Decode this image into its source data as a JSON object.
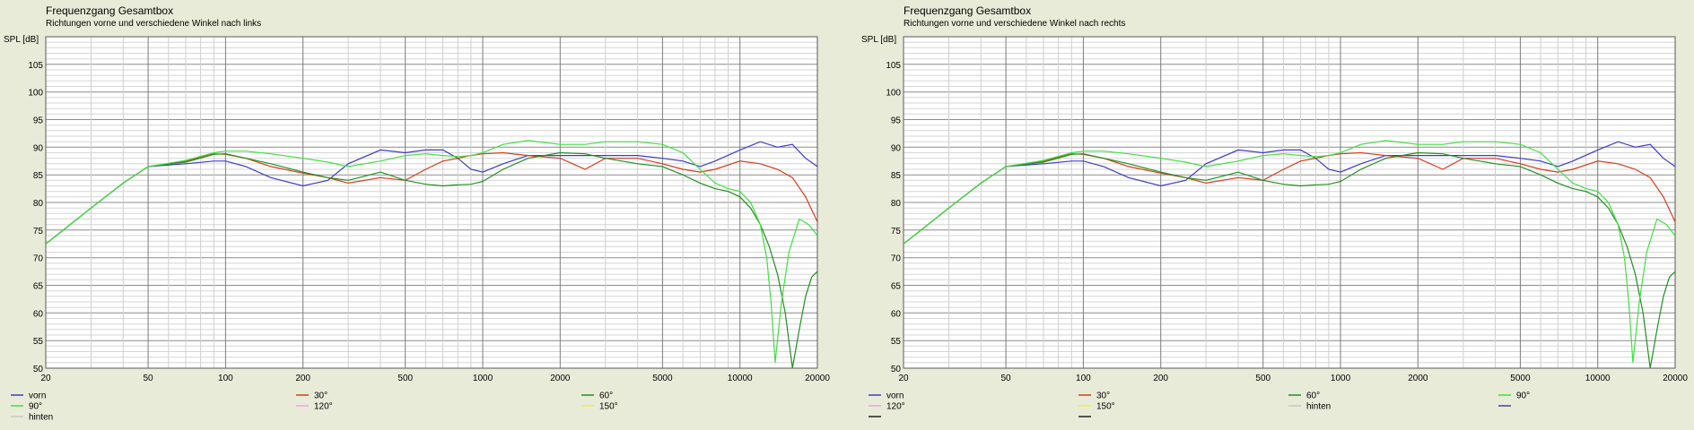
{
  "chart_data": [
    {
      "type": "line",
      "title": "Frequenzgang Gesamtbox",
      "subtitle": "Richtungen vorne und verschiedene Winkel nach links",
      "ylabel": "SPL [dB]",
      "xlabel": "",
      "x_scale": "log",
      "xlim": [
        20,
        20000
      ],
      "ylim": [
        50,
        110
      ],
      "grid": true,
      "x_ticks": [
        "20",
        "50",
        "100",
        "200",
        "500",
        "1000",
        "2000",
        "5000",
        "10000",
        "20000"
      ],
      "y_ticks": [
        "50",
        "55",
        "60",
        "65",
        "70",
        "75",
        "80",
        "85",
        "90",
        "95",
        "100",
        "105"
      ],
      "legend_rows": [
        [
          "vorn",
          "30°",
          "60°"
        ],
        [
          "90°",
          "120°",
          "150°"
        ],
        [
          "hinten"
        ]
      ],
      "series": [
        {
          "name": "vorn",
          "color": "#3c3cc8",
          "x": [
            20,
            30,
            40,
            50,
            70,
            90,
            100,
            120,
            150,
            200,
            250,
            300,
            400,
            500,
            600,
            700,
            800,
            900,
            1000,
            1200,
            1500,
            2000,
            3000,
            4000,
            5000,
            6000,
            7000,
            8000,
            10000,
            12000,
            14000,
            16000,
            18000,
            20000
          ],
          "y": [
            72.5,
            79,
            83.5,
            86.5,
            87,
            87.5,
            87.5,
            86.5,
            84.5,
            83,
            84,
            87,
            89.5,
            89,
            89.5,
            89.5,
            88,
            86,
            85.5,
            87,
            88.5,
            88.5,
            88.5,
            88.5,
            88,
            87.5,
            86.5,
            87.5,
            89.5,
            91,
            90,
            90.5,
            88,
            86.5
          ]
        },
        {
          "name": "30°",
          "color": "#d83a1c",
          "x": [
            20,
            30,
            40,
            50,
            70,
            90,
            100,
            120,
            150,
            200,
            250,
            300,
            400,
            500,
            600,
            700,
            800,
            900,
            1000,
            1200,
            1500,
            2000,
            2500,
            3000,
            4000,
            5000,
            6000,
            7000,
            8000,
            10000,
            12000,
            14000,
            16000,
            18000,
            20000
          ],
          "y": [
            72.5,
            79,
            83.5,
            86.5,
            87.5,
            88.8,
            88.7,
            88,
            86.5,
            85.3,
            84.5,
            83.5,
            84.5,
            84,
            86,
            87.5,
            88,
            88.5,
            88.8,
            89,
            88.5,
            88,
            86,
            88,
            88,
            87,
            86,
            85.5,
            86,
            87.5,
            87,
            86,
            84.5,
            81,
            76.5
          ]
        },
        {
          "name": "60°",
          "color": "#209020",
          "x": [
            20,
            30,
            40,
            50,
            70,
            90,
            100,
            120,
            150,
            200,
            250,
            300,
            350,
            400,
            500,
            600,
            700,
            800,
            900,
            1000,
            1200,
            1500,
            2000,
            2500,
            3000,
            4000,
            5000,
            6000,
            7000,
            8000,
            9000,
            10000,
            11000,
            12000,
            13000,
            14000,
            15000,
            16000,
            17000,
            18000,
            19000,
            20000
          ],
          "y": [
            72.5,
            79,
            83.5,
            86.5,
            87.3,
            88.7,
            88.8,
            88,
            87,
            85.5,
            84.5,
            84,
            84.8,
            85.5,
            84,
            83.3,
            83,
            83.2,
            83.3,
            83.8,
            86,
            88,
            89,
            88.8,
            88,
            87,
            86.5,
            85,
            83.5,
            82.5,
            82,
            81,
            79,
            76,
            72,
            67,
            60,
            50,
            57,
            63,
            66.5,
            67.5
          ]
        },
        {
          "name": "90°",
          "color": "#40e040",
          "x": [
            20,
            30,
            40,
            50,
            70,
            90,
            100,
            120,
            150,
            200,
            250,
            300,
            400,
            500,
            600,
            700,
            800,
            900,
            1000,
            1200,
            1500,
            2000,
            2500,
            3000,
            4000,
            5000,
            6000,
            7000,
            8000,
            9000,
            10000,
            11000,
            12000,
            12700,
            13200,
            13700,
            14500,
            15500,
            17000,
            18500,
            20000
          ],
          "y": [
            72.5,
            79,
            83.5,
            86.5,
            87.6,
            89,
            89.3,
            89.3,
            88.8,
            88,
            87.3,
            86.5,
            87.5,
            88.5,
            88.8,
            88.5,
            88.3,
            88.5,
            89,
            90.5,
            91.2,
            90.5,
            90.5,
            91,
            91,
            90.5,
            89,
            86,
            83.5,
            82.5,
            82,
            80,
            76,
            70,
            62,
            51,
            62,
            71,
            77,
            76,
            74
          ]
        },
        {
          "name": "120°",
          "color": "#f0a0f0",
          "x": [],
          "y": []
        },
        {
          "name": "150°",
          "color": "#f0f040",
          "x": [],
          "y": []
        },
        {
          "name": "hinten",
          "color": "#c8c8c8",
          "x": [],
          "y": []
        }
      ]
    },
    {
      "type": "line",
      "title": "Frequenzgang Gesamtbox",
      "subtitle": "Richtungen vorne und verschiedene Winkel nach rechts",
      "ylabel": "SPL [dB]",
      "xlabel": "",
      "x_scale": "log",
      "xlim": [
        20,
        20000
      ],
      "ylim": [
        50,
        110
      ],
      "grid": true,
      "x_ticks": [
        "20",
        "50",
        "100",
        "200",
        "500",
        "1000",
        "2000",
        "5000",
        "10000",
        "20000"
      ],
      "y_ticks": [
        "50",
        "55",
        "60",
        "65",
        "70",
        "75",
        "80",
        "85",
        "90",
        "95",
        "100",
        "105"
      ],
      "legend_rows": [
        [
          "vorn",
          "30°",
          "60°",
          "90°"
        ],
        [
          "120°",
          "150°",
          "hinten",
          ""
        ],
        [
          "",
          "",
          "",
          ""
        ]
      ],
      "series": [
        {
          "name": "vorn",
          "color": "#3c3cc8",
          "x": [
            20,
            30,
            40,
            50,
            70,
            90,
            100,
            120,
            150,
            200,
            250,
            300,
            400,
            500,
            600,
            700,
            800,
            900,
            1000,
            1200,
            1500,
            2000,
            3000,
            4000,
            5000,
            6000,
            7000,
            8000,
            10000,
            12000,
            14000,
            16000,
            18000,
            20000
          ],
          "y": [
            72.5,
            79,
            83.5,
            86.5,
            87,
            87.5,
            87.5,
            86.5,
            84.5,
            83,
            84,
            87,
            89.5,
            89,
            89.5,
            89.5,
            88,
            86,
            85.5,
            87,
            88.5,
            88.5,
            88.5,
            88.5,
            88,
            87.5,
            86.5,
            87.5,
            89.5,
            91,
            90,
            90.5,
            88,
            86.5
          ]
        },
        {
          "name": "30°",
          "color": "#d83a1c",
          "x": [
            20,
            30,
            40,
            50,
            70,
            90,
            100,
            120,
            150,
            200,
            250,
            300,
            400,
            500,
            600,
            700,
            800,
            900,
            1000,
            1200,
            1500,
            2000,
            2500,
            3000,
            4000,
            5000,
            6000,
            7000,
            8000,
            10000,
            12000,
            14000,
            16000,
            18000,
            20000
          ],
          "y": [
            72.5,
            79,
            83.5,
            86.5,
            87.5,
            88.8,
            88.7,
            88,
            86.5,
            85.3,
            84.5,
            83.5,
            84.5,
            84,
            86,
            87.5,
            88,
            88.5,
            88.8,
            89,
            88.5,
            88,
            86,
            88,
            88,
            87,
            86,
            85.5,
            86,
            87.5,
            87,
            86,
            84.5,
            81,
            76.5
          ]
        },
        {
          "name": "60°",
          "color": "#209020",
          "x": [
            20,
            30,
            40,
            50,
            70,
            90,
            100,
            120,
            150,
            200,
            250,
            300,
            350,
            400,
            500,
            600,
            700,
            800,
            900,
            1000,
            1200,
            1500,
            2000,
            2500,
            3000,
            4000,
            5000,
            6000,
            7000,
            8000,
            9000,
            10000,
            11000,
            12000,
            13000,
            14000,
            15000,
            16000,
            17000,
            18000,
            19000,
            20000
          ],
          "y": [
            72.5,
            79,
            83.5,
            86.5,
            87.3,
            88.7,
            88.8,
            88,
            87,
            85.5,
            84.5,
            84,
            84.8,
            85.5,
            84,
            83.3,
            83,
            83.2,
            83.3,
            83.8,
            86,
            88,
            89,
            88.8,
            88,
            87,
            86.5,
            85,
            83.5,
            82.5,
            82,
            81,
            79,
            76,
            72,
            67,
            60,
            50,
            57,
            63,
            66.5,
            67.5
          ]
        },
        {
          "name": "90°",
          "color": "#40e040",
          "x": [
            20,
            30,
            40,
            50,
            70,
            90,
            100,
            120,
            150,
            200,
            250,
            300,
            400,
            500,
            600,
            700,
            800,
            900,
            1000,
            1200,
            1500,
            2000,
            2500,
            3000,
            4000,
            5000,
            6000,
            7000,
            8000,
            9000,
            10000,
            11000,
            12000,
            12700,
            13200,
            13700,
            14500,
            15500,
            17000,
            18500,
            20000
          ],
          "y": [
            72.5,
            79,
            83.5,
            86.5,
            87.6,
            89,
            89.3,
            89.3,
            88.8,
            88,
            87.3,
            86.5,
            87.5,
            88.5,
            88.8,
            88.5,
            88.3,
            88.5,
            89,
            90.5,
            91.2,
            90.5,
            90.5,
            91,
            91,
            90.5,
            89,
            86,
            83.5,
            82.5,
            82,
            80,
            76,
            70,
            62,
            51,
            62,
            71,
            77,
            76,
            74
          ]
        },
        {
          "name": "120°",
          "color": "#f0a0f0",
          "x": [],
          "y": []
        },
        {
          "name": "150°",
          "color": "#f0f040",
          "x": [],
          "y": []
        },
        {
          "name": "hinten",
          "color": "#c8c8c8",
          "x": [],
          "y": []
        },
        {
          "name": "",
          "color": "#4040b0",
          "x": [],
          "y": []
        },
        {
          "name": "",
          "color": "#202020",
          "x": [],
          "y": []
        },
        {
          "name": "",
          "color": "#202020",
          "x": [],
          "y": []
        }
      ]
    }
  ]
}
